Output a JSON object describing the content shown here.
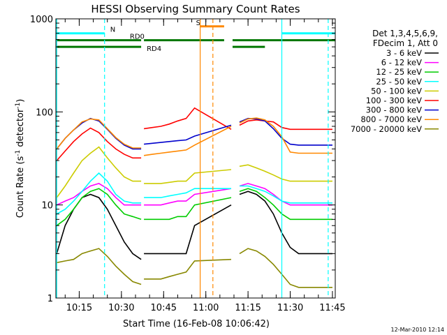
{
  "chart_data": {
    "type": "line",
    "title": "HESSI Observing Summary Count Rates",
    "xlabel": "Start Time (16-Feb-08 10:06:42)",
    "ylabel": "Count Rate (s⁻¹ detector⁻¹)",
    "ylabel_main": "Count Rate (s",
    "ylabel_sup1": "-1",
    "ylabel_mid": " detector",
    "ylabel_sup2": "-1",
    "ylabel_end": ")",
    "yscale": "log",
    "ylim": [
      1,
      1000
    ],
    "xlim": [
      "10:06:42",
      "11:46:00"
    ],
    "x_ticks": [
      "10:15",
      "10:30",
      "10:45",
      "11:00",
      "11:15",
      "11:30",
      "11:45"
    ],
    "y_ticks": [
      "1",
      "10",
      "100",
      "1000"
    ],
    "footer": "12-Mar-2010 12:14",
    "legend": {
      "header": [
        "Det 1,3,4,5,6,9,",
        "FDecim 1, Att 0"
      ],
      "placement": "right"
    },
    "gaps": [
      [
        "10:37:00",
        "10:38:00"
      ],
      [
        "11:06:30",
        "11:09:30"
      ]
    ],
    "x": [
      "10:07",
      "10:10",
      "10:13",
      "10:16",
      "10:19",
      "10:22",
      "10:25",
      "10:28",
      "10:31",
      "10:34",
      "10:37",
      "10:38",
      "10:41",
      "10:44",
      "10:47",
      "10:50",
      "10:53",
      "10:56",
      "11:09",
      "11:12",
      "11:15",
      "11:18",
      "11:21",
      "11:24",
      "11:27",
      "11:30",
      "11:33",
      "11:36",
      "11:39",
      "11:42",
      "11:45"
    ],
    "series": [
      {
        "name": "3 - 6 keV",
        "color": "#000000",
        "values": [
          3,
          6,
          9,
          12,
          13,
          12,
          9,
          6,
          4,
          3,
          2.6,
          3,
          3,
          3,
          3,
          3,
          3,
          6,
          10,
          13,
          14,
          13,
          11,
          8,
          5,
          3.5,
          3,
          3,
          3,
          3,
          3
        ]
      },
      {
        "name": "6 - 12 keV",
        "color": "#ff00ff",
        "values": [
          10,
          11,
          12,
          14,
          16,
          17,
          15,
          12,
          10,
          10,
          10,
          10,
          10,
          10,
          10.5,
          11,
          11,
          13,
          15,
          16,
          17,
          16,
          15,
          13,
          11,
          10,
          10,
          10,
          10,
          10,
          10
        ]
      },
      {
        "name": "12 - 25 keV",
        "color": "#00cc00",
        "values": [
          6,
          7,
          9,
          12,
          14,
          15,
          13,
          10,
          8,
          7.5,
          7,
          7,
          7,
          7,
          7,
          7.5,
          7.5,
          10,
          12,
          14,
          15,
          14,
          12,
          10,
          8,
          7,
          7,
          7,
          7,
          7,
          7
        ]
      },
      {
        "name": "25 - 50 keV",
        "color": "#00ffff",
        "values": [
          8,
          9,
          11,
          14,
          18,
          22,
          18,
          13,
          11,
          10.5,
          10.5,
          12,
          12,
          12,
          12.5,
          13,
          13.5,
          15,
          15,
          16,
          16,
          15,
          14,
          12.5,
          11,
          10.5,
          10.5,
          10.5,
          10.5,
          10.5,
          10.5
        ]
      },
      {
        "name": "50 - 100 keV",
        "color": "#cccc00",
        "values": [
          12,
          16,
          22,
          30,
          36,
          42,
          32,
          25,
          20,
          18,
          18,
          17,
          17,
          17,
          17.5,
          18,
          18,
          22,
          24,
          26,
          27,
          25,
          23,
          21,
          19,
          18,
          18,
          18,
          18,
          18,
          18
        ]
      },
      {
        "name": "100 - 300 keV",
        "color": "#ff0000",
        "values": [
          30,
          38,
          48,
          58,
          67,
          60,
          48,
          40,
          35,
          32,
          32,
          66,
          68,
          70,
          74,
          80,
          85,
          110,
          65,
          72,
          80,
          82,
          80,
          78,
          68,
          65,
          65,
          65,
          65,
          65,
          65
        ]
      },
      {
        "name": "300 - 800 keV",
        "color": "#0000cc",
        "values": [
          40,
          52,
          64,
          76,
          85,
          80,
          65,
          52,
          44,
          40,
          40,
          45,
          46,
          47,
          48,
          49,
          50,
          55,
          72,
          78,
          85,
          84,
          80,
          66,
          52,
          45,
          44,
          44,
          44,
          44,
          44
        ]
      },
      {
        "name": "800 - 7000 keV",
        "color": "#ff8800",
        "values": [
          40,
          52,
          64,
          78,
          84,
          82,
          66,
          53,
          45,
          41,
          41,
          34,
          35,
          36,
          37,
          38,
          39,
          44,
          70,
          76,
          84,
          86,
          82,
          70,
          54,
          37,
          36,
          36,
          36,
          36,
          36
        ]
      },
      {
        "name": "7000 - 20000 keV",
        "color": "#888800",
        "values": [
          2.4,
          2.5,
          2.6,
          3,
          3.2,
          3.4,
          2.8,
          2.2,
          1.8,
          1.5,
          1.4,
          1.6,
          1.6,
          1.6,
          1.7,
          1.8,
          1.9,
          2.5,
          2.6,
          3,
          3.4,
          3.2,
          2.8,
          2.3,
          1.8,
          1.4,
          1.3,
          1.3,
          1.3,
          1.3,
          1.3
        ]
      }
    ],
    "flags": [
      {
        "label": "N",
        "color": "#00ffff",
        "segments": [
          [
            "10:06:42",
            "10:24:00"
          ],
          [
            "11:27:00",
            "11:46:00"
          ]
        ],
        "level": 700,
        "label_at": "10:26:00"
      },
      {
        "label": "RD0",
        "color": "#007700",
        "segments": [
          [
            "10:06:42",
            "10:37:00"
          ],
          [
            "10:38:00",
            "11:06:30"
          ],
          [
            "11:09:30",
            "11:46:00"
          ]
        ],
        "level": 590,
        "label_at": "10:33:00"
      },
      {
        "label": "RD4",
        "color": "#007700",
        "segments": [
          [
            "10:06:42",
            "10:37:00"
          ],
          [
            "11:09:30",
            "11:21:00"
          ]
        ],
        "level": 500,
        "label_at": "10:39:00"
      },
      {
        "label": "S",
        "color": "#ff8800",
        "segments": [
          [
            "10:58:00",
            "11:06:30"
          ]
        ],
        "level": 830,
        "label_at": "10:56:30"
      }
    ],
    "markers": [
      {
        "time": "10:24:00",
        "color": "#00ffff",
        "style": "dashed"
      },
      {
        "time": "11:27:00",
        "color": "#00ffff",
        "style": "solid"
      },
      {
        "time": "11:43:30",
        "color": "#00ffff",
        "style": "dashed"
      },
      {
        "time": "10:07:00",
        "color": "#00ffff",
        "style": "solid"
      },
      {
        "time": "10:58:00",
        "color": "#ff8800",
        "style": "solid"
      },
      {
        "time": "11:02:30",
        "color": "#ff8800",
        "style": "dashed"
      }
    ]
  }
}
